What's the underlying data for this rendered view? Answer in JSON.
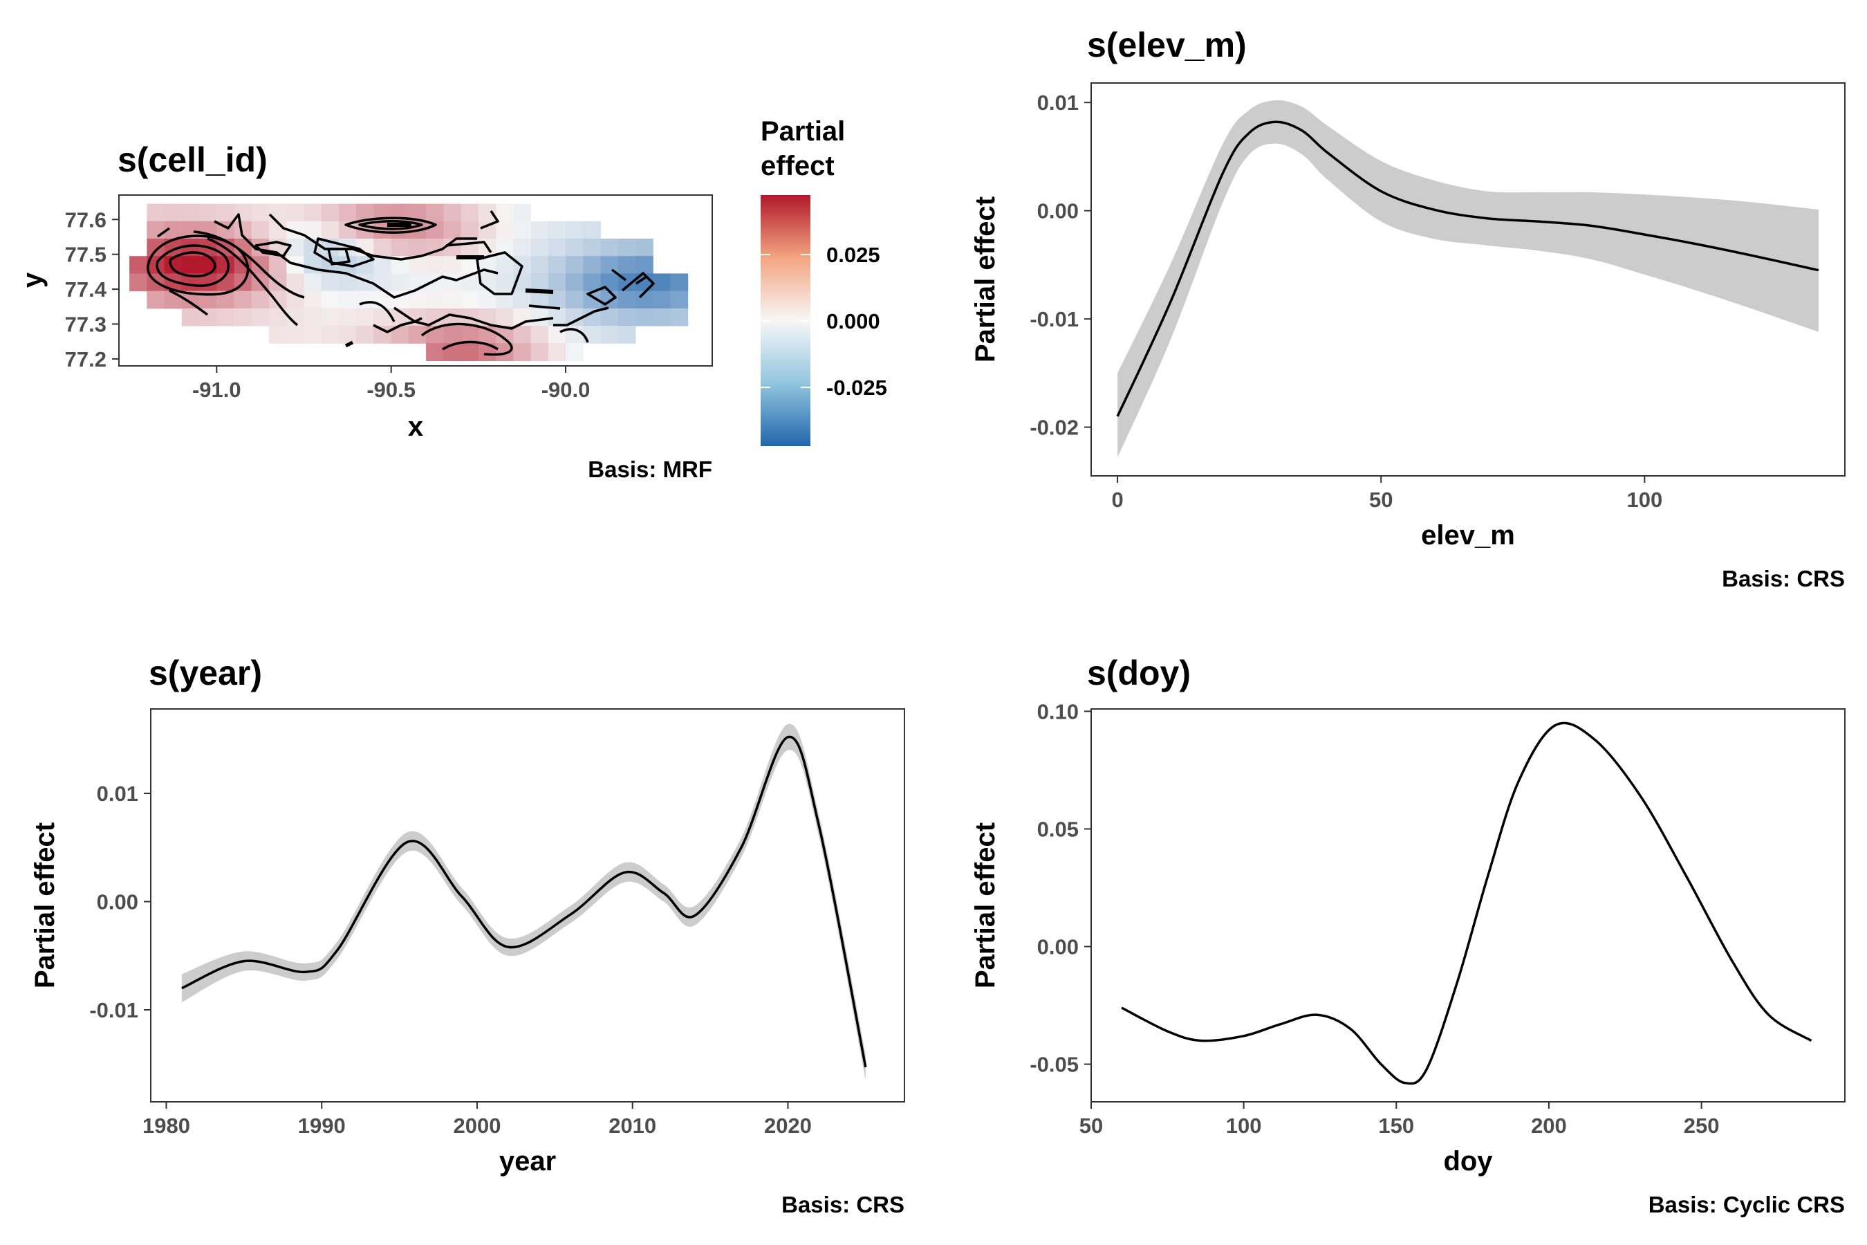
{
  "panels": {
    "cell": {
      "title": "s(cell_id)",
      "xlabel": "x",
      "ylabel": "y",
      "caption": "Basis: MRF",
      "xticks": [
        "-91.0",
        "-90.5",
        "-90.0"
      ],
      "yticks": [
        "77.2",
        "77.3",
        "77.4",
        "77.5",
        "77.6"
      ],
      "legend_title": [
        "Partial",
        "effect"
      ],
      "legend_ticks": [
        "0.025",
        "0.000",
        "-0.025"
      ]
    },
    "elev": {
      "title": "s(elev_m)",
      "xlabel": "elev_m",
      "ylabel": "Partial effect",
      "caption": "Basis: CRS",
      "xticks": [
        "0",
        "50",
        "100"
      ],
      "yticks": [
        "0.01",
        "0.00",
        "-0.01",
        "-0.02"
      ]
    },
    "year": {
      "title": "s(year)",
      "xlabel": "year",
      "ylabel": "Partial effect",
      "caption": "Basis: CRS",
      "xticks": [
        "1980",
        "1990",
        "2000",
        "2010",
        "2020"
      ],
      "yticks": [
        "0.01",
        "0.00",
        "-0.01"
      ]
    },
    "doy": {
      "title": "s(doy)",
      "xlabel": "doy",
      "ylabel": "Partial effect",
      "caption": "Basis: Cyclic CRS",
      "xticks": [
        "50",
        "100",
        "150",
        "200",
        "250"
      ],
      "yticks": [
        "0.10",
        "0.05",
        "0.00",
        "-0.05"
      ]
    }
  },
  "chart_data": [
    {
      "type": "heatmap",
      "panel": "cell",
      "xlim": [
        -91.28,
        -89.58
      ],
      "ylim": [
        77.18,
        77.67
      ],
      "color_scale": {
        "low": "#2166ac",
        "mid": "#f7f7f7",
        "high": "#b2182b",
        "range": [
          -0.045,
          0.045
        ]
      },
      "cells_note_values": [
        {
          "x": -91.05,
          "y": 77.47,
          "value": 0.045
        },
        {
          "x": -90.48,
          "y": 77.58,
          "value": 0.02
        },
        {
          "x": -90.3,
          "y": 77.22,
          "value": 0.025
        },
        {
          "x": -89.78,
          "y": 77.42,
          "value": -0.03
        },
        {
          "x": -90.7,
          "y": 77.5,
          "value": -0.015
        }
      ]
    },
    {
      "type": "line",
      "panel": "elev",
      "xlim": [
        -5,
        138
      ],
      "ylim": [
        -0.0245,
        0.0118
      ],
      "x": [
        0,
        10,
        20,
        25,
        30,
        35,
        40,
        50,
        60,
        70,
        80,
        90,
        100,
        110,
        120,
        133
      ],
      "y": [
        -0.019,
        -0.0085,
        0.0035,
        0.0072,
        0.0082,
        0.0074,
        0.0053,
        0.0018,
        0.0001,
        -0.0007,
        -0.001,
        -0.0014,
        -0.0022,
        -0.0031,
        -0.0041,
        -0.0055
      ],
      "ci_upper": [
        -0.015,
        -0.005,
        0.0062,
        0.0093,
        0.0102,
        0.0096,
        0.0078,
        0.0046,
        0.0028,
        0.0018,
        0.0017,
        0.0017,
        0.0015,
        0.0012,
        0.0008,
        0.0001
      ],
      "ci_lower": [
        -0.0228,
        -0.012,
        0.0008,
        0.0052,
        0.0062,
        0.0052,
        0.0028,
        -0.001,
        -0.0026,
        -0.0032,
        -0.0037,
        -0.0045,
        -0.0059,
        -0.0074,
        -0.009,
        -0.0112
      ]
    },
    {
      "type": "line",
      "panel": "year",
      "xlim": [
        1979,
        2027.5
      ],
      "ylim": [
        -0.0185,
        0.0178
      ],
      "x": [
        1981,
        1985,
        1989,
        1991,
        1995.5,
        1999,
        2002,
        2006,
        2009.5,
        2012,
        2014,
        2017,
        2020,
        2022,
        2025
      ],
      "y": [
        -0.008,
        -0.0055,
        -0.0065,
        -0.0045,
        0.0055,
        0.0005,
        -0.0042,
        -0.0012,
        0.0027,
        0.0008,
        -0.0013,
        0.005,
        0.0152,
        0.007,
        -0.0153
      ],
      "ci_halfwidth": [
        0.0013,
        0.0009,
        0.0008,
        0.0008,
        0.0009,
        0.0008,
        0.0008,
        0.0008,
        0.0009,
        0.0008,
        0.0009,
        0.0009,
        0.0012,
        0.001,
        0.0012
      ]
    },
    {
      "type": "line",
      "panel": "doy",
      "xlim": [
        50,
        297
      ],
      "ylim": [
        -0.066,
        0.101
      ],
      "x": [
        60,
        75,
        86,
        100,
        112,
        124,
        135,
        145,
        153,
        160,
        170,
        180,
        190,
        202,
        215,
        230,
        245,
        260,
        272,
        286
      ],
      "y": [
        -0.026,
        -0.036,
        -0.04,
        -0.038,
        -0.033,
        -0.029,
        -0.035,
        -0.05,
        -0.058,
        -0.052,
        -0.015,
        0.03,
        0.07,
        0.094,
        0.088,
        0.064,
        0.03,
        -0.006,
        -0.029,
        -0.04
      ]
    }
  ]
}
